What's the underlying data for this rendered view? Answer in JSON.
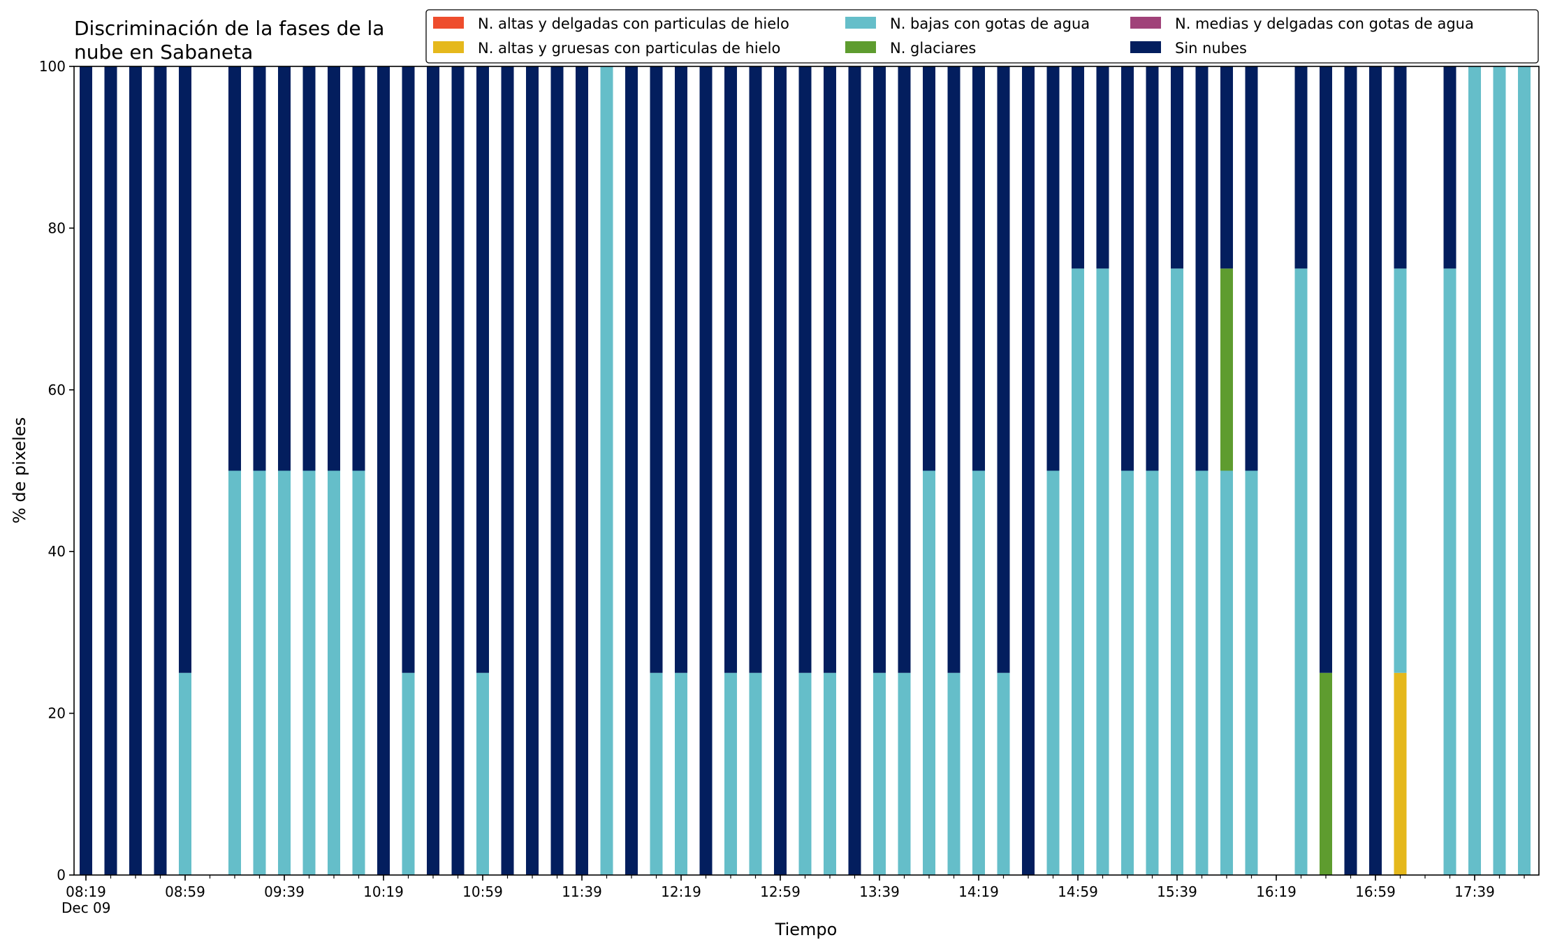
{
  "chart_data": {
    "type": "bar",
    "stacked": true,
    "title": "Discriminación de la fases de la nube en Sabaneta",
    "title_lines": [
      "Discriminación de la fases de la",
      "nube en Sabaneta"
    ],
    "xlabel": "Tiempo",
    "ylabel": "% de pixeles",
    "ylim": [
      0,
      100
    ],
    "yticks": [
      0,
      20,
      40,
      60,
      80,
      100
    ],
    "xtick_labels": [
      "08:19",
      "08:59",
      "09:39",
      "10:19",
      "10:59",
      "11:39",
      "12:19",
      "12:59",
      "13:39",
      "14:19",
      "14:59",
      "15:39",
      "16:19",
      "16:59",
      "17:39"
    ],
    "date_label": "Dec 09",
    "legend_position": "top-right",
    "legend_columns": 3,
    "grid": false,
    "interval_minutes": 10,
    "time_start": "08:19",
    "time_end": "17:59",
    "series": [
      {
        "name": "N. altas y delgadas con particulas de hielo",
        "color": "#ee4d2d"
      },
      {
        "name": "N. altas y gruesas con particulas de hielo",
        "color": "#e5b81c"
      },
      {
        "name": "N. bajas con gotas de agua",
        "color": "#65bec9"
      },
      {
        "name": "N. glaciares",
        "color": "#5e9c2f"
      },
      {
        "name": "N. medias y delgadas con gotas de agua",
        "color": "#a04279"
      },
      {
        "name": "Sin nubes",
        "color": "#031e5e"
      }
    ],
    "categories": [
      "08:19",
      "08:29",
      "08:39",
      "08:49",
      "08:59",
      "09:09",
      "09:19",
      "09:29",
      "09:39",
      "09:49",
      "09:59",
      "10:09",
      "10:19",
      "10:29",
      "10:39",
      "10:49",
      "10:59",
      "11:09",
      "11:19",
      "11:29",
      "11:39",
      "11:49",
      "11:59",
      "12:09",
      "12:19",
      "12:29",
      "12:39",
      "12:49",
      "12:59",
      "13:09",
      "13:19",
      "13:29",
      "13:39",
      "13:49",
      "13:59",
      "14:09",
      "14:19",
      "14:29",
      "14:39",
      "14:49",
      "14:59",
      "15:09",
      "15:19",
      "15:29",
      "15:39",
      "15:49",
      "15:59",
      "16:09",
      "16:19",
      "16:29",
      "16:39",
      "16:49",
      "16:59",
      "17:09",
      "17:19",
      "17:29",
      "17:39",
      "17:49",
      "17:59"
    ],
    "bars": [
      {
        "time": "08:19",
        "values": [
          0,
          0,
          0,
          0,
          0,
          100
        ]
      },
      {
        "time": "08:29",
        "values": [
          0,
          0,
          0,
          0,
          0,
          100
        ]
      },
      {
        "time": "08:39",
        "values": [
          0,
          0,
          0,
          0,
          0,
          100
        ]
      },
      {
        "time": "08:49",
        "values": [
          0,
          0,
          0,
          0,
          0,
          100
        ]
      },
      {
        "time": "08:59",
        "values": [
          0,
          0,
          25,
          0,
          0,
          75
        ]
      },
      {
        "time": "09:19",
        "values": [
          0,
          0,
          50,
          0,
          0,
          50
        ]
      },
      {
        "time": "09:29",
        "values": [
          0,
          0,
          50,
          0,
          0,
          50
        ]
      },
      {
        "time": "09:39",
        "values": [
          0,
          0,
          50,
          0,
          0,
          50
        ]
      },
      {
        "time": "09:49",
        "values": [
          0,
          0,
          50,
          0,
          0,
          50
        ]
      },
      {
        "time": "09:59",
        "values": [
          0,
          0,
          50,
          0,
          0,
          50
        ]
      },
      {
        "time": "10:09",
        "values": [
          0,
          0,
          50,
          0,
          0,
          50
        ]
      },
      {
        "time": "10:19",
        "values": [
          0,
          0,
          0,
          0,
          0,
          100
        ]
      },
      {
        "time": "10:29",
        "values": [
          0,
          0,
          25,
          0,
          0,
          75
        ]
      },
      {
        "time": "10:39",
        "values": [
          0,
          0,
          0,
          0,
          0,
          100
        ]
      },
      {
        "time": "10:49",
        "values": [
          0,
          0,
          0,
          0,
          0,
          100
        ]
      },
      {
        "time": "10:59",
        "values": [
          0,
          0,
          25,
          0,
          0,
          75
        ]
      },
      {
        "time": "11:09",
        "values": [
          0,
          0,
          0,
          0,
          0,
          100
        ]
      },
      {
        "time": "11:19",
        "values": [
          0,
          0,
          0,
          0,
          0,
          100
        ]
      },
      {
        "time": "11:29",
        "values": [
          0,
          0,
          0,
          0,
          0,
          100
        ]
      },
      {
        "time": "11:39",
        "values": [
          0,
          0,
          0,
          0,
          0,
          100
        ]
      },
      {
        "time": "11:49",
        "values": [
          0,
          0,
          100,
          0,
          0,
          0
        ]
      },
      {
        "time": "11:59",
        "values": [
          0,
          0,
          0,
          0,
          0,
          100
        ]
      },
      {
        "time": "12:09",
        "values": [
          0,
          0,
          25,
          0,
          0,
          75
        ]
      },
      {
        "time": "12:19",
        "values": [
          0,
          0,
          25,
          0,
          0,
          75
        ]
      },
      {
        "time": "12:29",
        "values": [
          0,
          0,
          0,
          0,
          0,
          100
        ]
      },
      {
        "time": "12:39",
        "values": [
          0,
          0,
          25,
          0,
          0,
          75
        ]
      },
      {
        "time": "12:49",
        "values": [
          0,
          0,
          25,
          0,
          0,
          75
        ]
      },
      {
        "time": "12:59",
        "values": [
          0,
          0,
          0,
          0,
          0,
          100
        ]
      },
      {
        "time": "13:09",
        "values": [
          0,
          0,
          25,
          0,
          0,
          75
        ]
      },
      {
        "time": "13:19",
        "values": [
          0,
          0,
          25,
          0,
          0,
          75
        ]
      },
      {
        "time": "13:29",
        "values": [
          0,
          0,
          0,
          0,
          0,
          100
        ]
      },
      {
        "time": "13:39",
        "values": [
          0,
          0,
          25,
          0,
          0,
          75
        ]
      },
      {
        "time": "13:49",
        "values": [
          0,
          0,
          25,
          0,
          0,
          75
        ]
      },
      {
        "time": "13:59",
        "values": [
          0,
          0,
          50,
          0,
          0,
          50
        ]
      },
      {
        "time": "14:09",
        "values": [
          0,
          0,
          25,
          0,
          0,
          75
        ]
      },
      {
        "time": "14:19",
        "values": [
          0,
          0,
          50,
          0,
          0,
          50
        ]
      },
      {
        "time": "14:29",
        "values": [
          0,
          0,
          25,
          0,
          0,
          75
        ]
      },
      {
        "time": "14:39",
        "values": [
          0,
          0,
          0,
          0,
          0,
          100
        ]
      },
      {
        "time": "14:49",
        "values": [
          0,
          0,
          50,
          0,
          0,
          50
        ]
      },
      {
        "time": "14:59",
        "values": [
          0,
          0,
          75,
          0,
          0,
          25
        ]
      },
      {
        "time": "15:09",
        "values": [
          0,
          0,
          75,
          0,
          0,
          25
        ]
      },
      {
        "time": "15:19",
        "values": [
          0,
          0,
          50,
          0,
          0,
          50
        ]
      },
      {
        "time": "15:29",
        "values": [
          0,
          0,
          50,
          0,
          0,
          50
        ]
      },
      {
        "time": "15:39",
        "values": [
          0,
          0,
          75,
          0,
          0,
          25
        ]
      },
      {
        "time": "15:49",
        "values": [
          0,
          0,
          50,
          0,
          0,
          50
        ]
      },
      {
        "time": "15:59",
        "values": [
          0,
          0,
          50,
          25,
          0,
          25
        ]
      },
      {
        "time": "16:09",
        "values": [
          0,
          0,
          50,
          0,
          0,
          50
        ]
      },
      {
        "time": "16:29",
        "values": [
          0,
          0,
          75,
          0,
          0,
          25
        ]
      },
      {
        "time": "16:39",
        "values": [
          0,
          0,
          0,
          25,
          0,
          75
        ]
      },
      {
        "time": "16:49",
        "values": [
          0,
          0,
          0,
          0,
          0,
          100
        ]
      },
      {
        "time": "16:59",
        "values": [
          0,
          0,
          0,
          0,
          0,
          100
        ]
      },
      {
        "time": "17:09",
        "values": [
          0,
          25,
          50,
          0,
          0,
          25
        ]
      },
      {
        "time": "17:29",
        "values": [
          0,
          0,
          75,
          0,
          0,
          25
        ]
      },
      {
        "time": "17:39",
        "values": [
          0,
          0,
          100,
          0,
          0,
          0
        ]
      },
      {
        "time": "17:49",
        "values": [
          0,
          0,
          100,
          0,
          0,
          0
        ]
      },
      {
        "time": "17:59",
        "values": [
          0,
          0,
          100,
          0,
          0,
          0
        ]
      }
    ]
  }
}
